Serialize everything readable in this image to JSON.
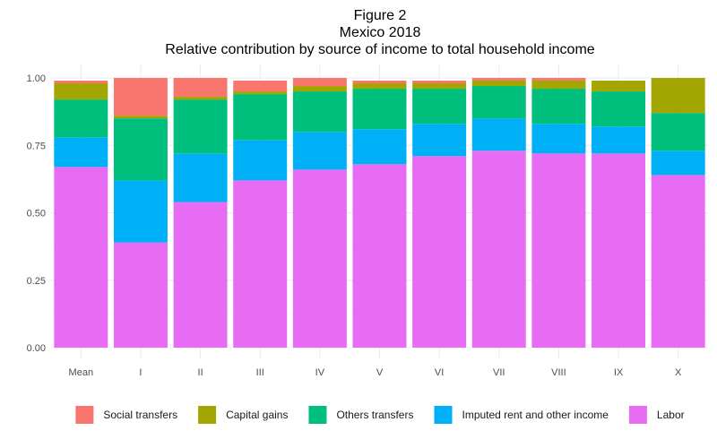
{
  "chart_data": {
    "type": "bar",
    "stacked": true,
    "title": "Figure 2",
    "subtitle_lines": [
      "Mexico 2018",
      "Relative contribution by source of income to total household income"
    ],
    "xlabel": "",
    "ylabel": "",
    "ylim": [
      0,
      1.0
    ],
    "yticks": [
      "0.00",
      "0.25",
      "0.50",
      "0.75",
      "1.00"
    ],
    "ytick_values": [
      0,
      0.25,
      0.5,
      0.75,
      1.0
    ],
    "categories": [
      "Mean",
      "I",
      "II",
      "III",
      "IV",
      "V",
      "VI",
      "VII",
      "VIII",
      "IX",
      "X"
    ],
    "series": [
      {
        "name": "Labor",
        "color": "#E76BF3",
        "values": [
          0.67,
          0.39,
          0.54,
          0.62,
          0.66,
          0.68,
          0.71,
          0.73,
          0.72,
          0.72,
          0.64
        ]
      },
      {
        "name": "Imputed rent and other income",
        "color": "#00B0F6",
        "values": [
          0.11,
          0.23,
          0.18,
          0.15,
          0.14,
          0.13,
          0.12,
          0.12,
          0.11,
          0.1,
          0.09
        ]
      },
      {
        "name": "Others transfers",
        "color": "#00BF7D",
        "values": [
          0.14,
          0.23,
          0.2,
          0.17,
          0.15,
          0.15,
          0.13,
          0.12,
          0.13,
          0.13,
          0.14
        ]
      },
      {
        "name": "Capital gains",
        "color": "#A3A500",
        "values": [
          0.06,
          0.01,
          0.01,
          0.01,
          0.02,
          0.02,
          0.02,
          0.02,
          0.03,
          0.04,
          0.13
        ]
      },
      {
        "name": "Social transfers",
        "color": "#F8766D",
        "values": [
          0.01,
          0.14,
          0.07,
          0.04,
          0.03,
          0.01,
          0.01,
          0.01,
          0.01,
          0.0,
          0.0
        ]
      }
    ],
    "legend": {
      "position": "bottom",
      "order": [
        "Social transfers",
        "Capital gains",
        "Others transfers",
        "Imputed rent and other income",
        "Labor"
      ]
    },
    "grid": true
  }
}
